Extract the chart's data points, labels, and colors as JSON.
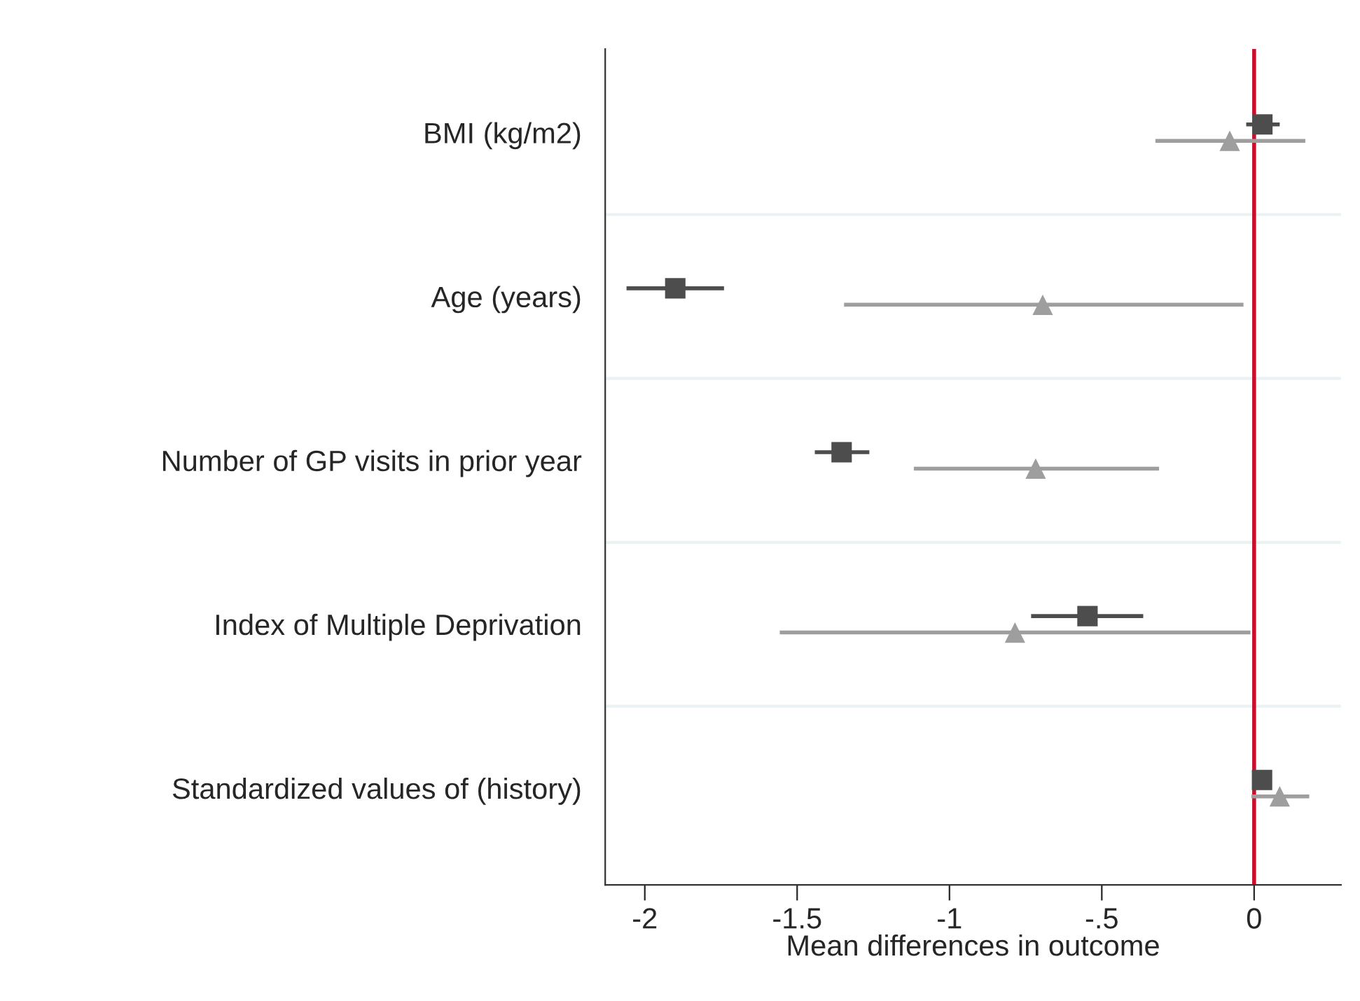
{
  "chart_data": {
    "type": "scatter",
    "orientation": "horizontal",
    "xlabel": "Mean differences in outcome",
    "categories": [
      "BMI (kg/m2)",
      "Age (years)",
      "Number of GP visits in prior year",
      "Index of Multiple Deprivation",
      "Standardized values of (history)"
    ],
    "series": [
      {
        "color": "#4d4d4d",
        "marker": "square",
        "values": [
          0.027,
          -1.9,
          -1.354,
          -0.547,
          0.026
        ],
        "errors": [
          [
            -0.026,
            0.084
          ],
          [
            -2.06,
            -1.74
          ],
          [
            -1.442,
            -1.263
          ],
          [
            -0.732,
            -0.364
          ],
          null
        ]
      },
      {
        "color": "#9e9e9e",
        "marker": "triangle",
        "values": [
          -0.08,
          -0.694,
          -0.717,
          -0.785,
          0.084
        ],
        "errors": [
          [
            -0.324,
            0.168
          ],
          [
            -1.346,
            -0.035
          ],
          [
            -1.117,
            -0.312
          ],
          [
            -1.557,
            -0.012
          ],
          [
            -0.009,
            0.181
          ]
        ]
      }
    ],
    "xlim": [
      -2.13,
      0.285
    ],
    "xticks": [
      -2,
      -1.5,
      -1,
      {
        "value": -0.5,
        "label": "-.5"
      },
      0
    ],
    "ref_lines": [
      {
        "axis": "x",
        "value": 0,
        "color": "#c8102e"
      }
    ],
    "grid": "y"
  }
}
